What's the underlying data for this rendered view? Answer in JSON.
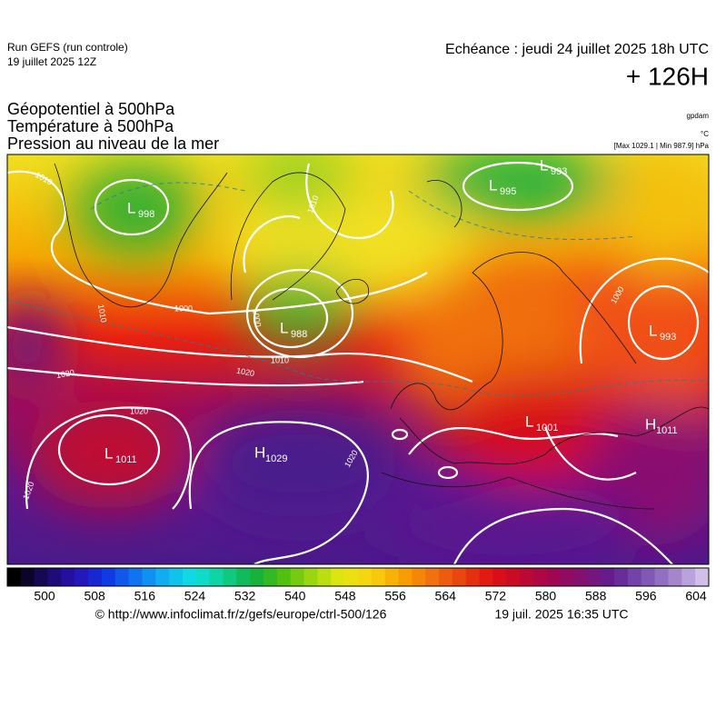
{
  "header": {
    "run": "Run GEFS (run controle)",
    "run_date": "19 juillet 2025 12Z",
    "valid": "Echéance : jeudi 24 juillet 2025 18h UTC",
    "lead": "+ 126H"
  },
  "fields": [
    "Géopotentiel à 500hPa",
    "Température à 500hPa",
    "Pression au niveau de la mer"
  ],
  "units": {
    "geopotential": "gpdam",
    "temperature": "°C",
    "pressure": "[Max 1029.1 | Min 987.9] hPa"
  },
  "centers": [
    {
      "letter": "L",
      "value": "998"
    },
    {
      "letter": "L",
      "value": "988"
    },
    {
      "letter": "L",
      "value": "995"
    },
    {
      "letter": "L",
      "value": "993"
    },
    {
      "letter": "L",
      "value": "993"
    },
    {
      "letter": "L",
      "value": "1011"
    },
    {
      "letter": "H",
      "value": "1029"
    },
    {
      "letter": "L",
      "value": "1001"
    },
    {
      "letter": "H",
      "value": "1011"
    }
  ],
  "isobar_labels": [
    "1010",
    "1000",
    "1010",
    "1020",
    "1020",
    "1010",
    "1020",
    "1020",
    "1020",
    "1000",
    "1010",
    "1000"
  ],
  "colorbar": {
    "ticks": [
      500,
      508,
      516,
      524,
      532,
      540,
      548,
      556,
      564,
      572,
      580,
      588,
      596,
      604
    ]
  },
  "footer": {
    "source": "© http://www.infoclimat.fr/z/gefs/europe/ctrl-500/126",
    "generated": "19 juil. 2025 16:35 UTC"
  }
}
